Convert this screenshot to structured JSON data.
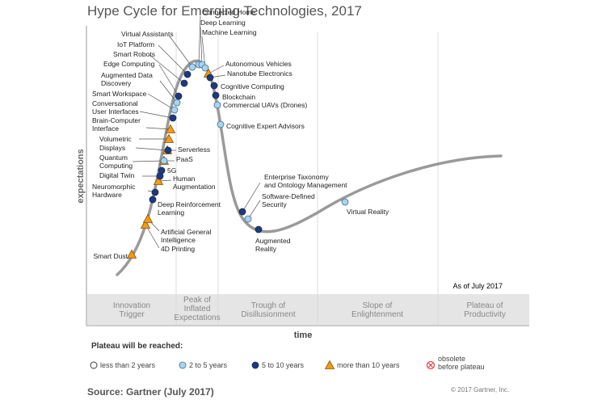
{
  "title": "Hype Cycle for Emerging Technologies, 2017",
  "y_axis_label": "expectations",
  "x_axis_label": "time",
  "as_of": "As of July 2017",
  "phases": [
    {
      "label": [
        "Innovation",
        "Trigger"
      ]
    },
    {
      "label": [
        "Peak of",
        "Inflated",
        "Expectations"
      ]
    },
    {
      "label": [
        "Trough of",
        "Disillusionment"
      ]
    },
    {
      "label": [
        "Slope of",
        "Enlightenment"
      ]
    },
    {
      "label": [
        "Plateau of",
        "Productivity"
      ]
    }
  ],
  "legend": {
    "title": "Plateau will be reached:",
    "items": [
      {
        "label": [
          "less than 2 years"
        ],
        "marker": "circle",
        "color": "#ffffff"
      },
      {
        "label": [
          "2 to 5 years"
        ],
        "marker": "circle",
        "color": "#a9d4ee"
      },
      {
        "label": [
          "5 to 10 years"
        ],
        "marker": "circle",
        "color": "#1f3a7a"
      },
      {
        "label": [
          "more than 10 years"
        ],
        "marker": "triangle",
        "color": "#f39a1e"
      },
      {
        "label": [
          "obsolete",
          "before plateau"
        ],
        "marker": "obsolete",
        "color": "#e04040"
      }
    ]
  },
  "technologies": [
    {
      "label": [
        "Smart Dust"
      ],
      "marker": "triangle"
    },
    {
      "label": [
        "4D Printing"
      ],
      "marker": "triangle"
    },
    {
      "label": [
        "Artificial General",
        "Intelligence"
      ],
      "marker": "triangle"
    },
    {
      "label": [
        "Deep Reinforcement",
        "Learning"
      ],
      "marker": "navy"
    },
    {
      "label": [
        "Neuromorphic",
        "Hardware"
      ],
      "marker": "navy"
    },
    {
      "label": [
        "Human",
        "Augmentation"
      ],
      "marker": "triangle"
    },
    {
      "label": [
        "Digital Twin"
      ],
      "marker": "navy"
    },
    {
      "label": [
        "5G"
      ],
      "marker": "navy"
    },
    {
      "label": [
        "Quantum",
        "Computing"
      ],
      "marker": "triangle"
    },
    {
      "label": [
        "PaaS"
      ],
      "marker": "light"
    },
    {
      "label": [
        "Displays"
      ],
      "marker": "triangle"
    },
    {
      "label": [
        "Serverless"
      ],
      "marker": "navy"
    },
    {
      "label": [
        "Volumetric"
      ],
      "marker": "triangle"
    },
    {
      "label": [
        "Brain-Computer",
        "Interface"
      ],
      "marker": "triangle"
    },
    {
      "label": [
        "Conversational",
        "User Interfaces"
      ],
      "marker": "navy"
    },
    {
      "label": [
        "Smart Workspace"
      ],
      "marker": "light"
    },
    {
      "label": [
        "Augmented Data",
        "Discovery"
      ],
      "marker": "light"
    },
    {
      "label": [
        "Edge Computing"
      ],
      "marker": "navy"
    },
    {
      "label": [
        "Smart Robots"
      ],
      "marker": "navy"
    },
    {
      "label": [
        "IoT Platform"
      ],
      "marker": "navy"
    },
    {
      "label": [
        "Virtual Assistants"
      ],
      "marker": "light"
    },
    {
      "label": [
        "Connected Home"
      ],
      "marker": "light"
    },
    {
      "label": [
        "Deep Learning"
      ],
      "marker": "light"
    },
    {
      "label": [
        "Machine Learning"
      ],
      "marker": "light"
    },
    {
      "label": [
        "Autonomous Vehicles"
      ],
      "marker": "triangle"
    },
    {
      "label": [
        "Nanotube Electronics"
      ],
      "marker": "navy"
    },
    {
      "label": [
        "Cognitive Computing"
      ],
      "marker": "navy"
    },
    {
      "label": [
        "Blockchain"
      ],
      "marker": "navy"
    },
    {
      "label": [
        "Commercial UAVs (Drones)"
      ],
      "marker": "light"
    },
    {
      "label": [
        "Cognitive Expert Advisors"
      ],
      "marker": "light"
    },
    {
      "label": [
        "Enterprise Taxonomy",
        "and Ontology Management"
      ],
      "marker": "navy"
    },
    {
      "label": [
        "Software-Defined",
        "Security"
      ],
      "marker": "light"
    },
    {
      "label": [
        "Augmented",
        "Reality"
      ],
      "marker": "navy"
    },
    {
      "label": [
        "Virtual Reality"
      ],
      "marker": "light"
    }
  ],
  "source": "Source: Gartner (July 2017)",
  "copyright": "© 2017 Gartner, Inc."
}
